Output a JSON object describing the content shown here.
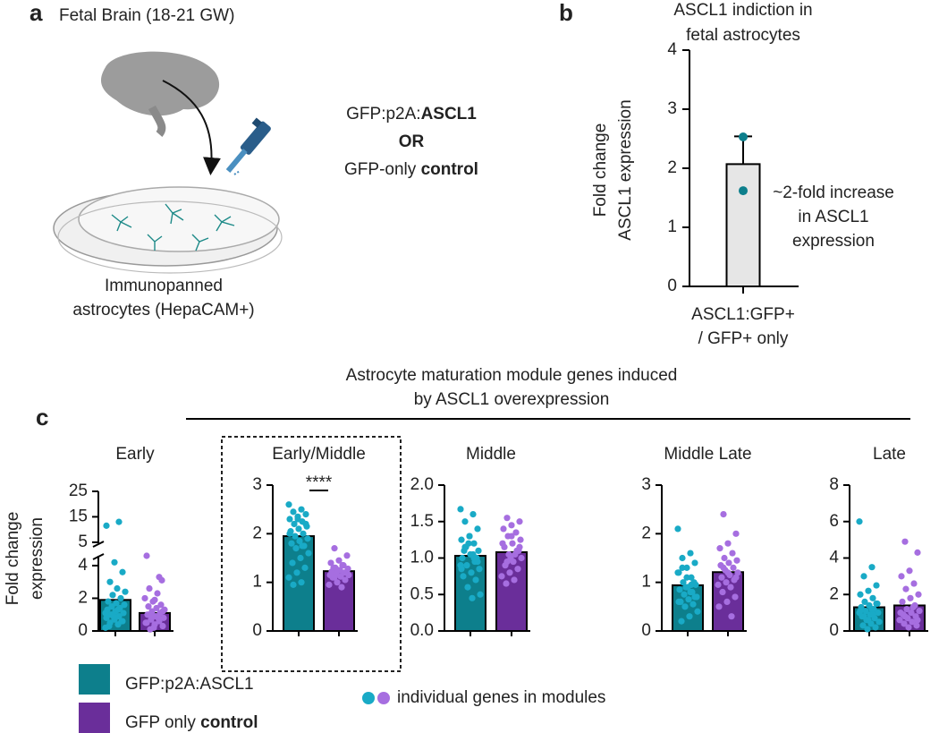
{
  "panel_labels": [
    "a",
    "b",
    "c"
  ],
  "panel_a": {
    "title": "Fetal Brain (18-21 GW)",
    "caption": [
      "Immunopanned",
      "astrocytes (HepaCAM+)"
    ],
    "conditions": [
      [
        {
          "text": "GFP:p2A:",
          "bold": false
        },
        {
          "text": "ASCL1",
          "bold": true
        }
      ],
      [
        {
          "text": "OR",
          "bold": true
        }
      ],
      [
        {
          "text": "GFP-only ",
          "bold": false
        },
        {
          "text": "control",
          "bold": true
        }
      ]
    ]
  },
  "panel_c": {
    "title": [
      "Astrocyte maturation module genes induced",
      "by ASCL1 overexpression"
    ],
    "y_label": [
      "Fold change",
      "expression"
    ]
  },
  "legend": {
    "entries": [
      {
        "text": [
          {
            "text": "GFP:p2A:ASCL1",
            "bold": false
          }
        ],
        "color": "#0d7f8c"
      },
      {
        "text": [
          {
            "text": "GFP only ",
            "bold": false
          },
          {
            "text": "control",
            "bold": true
          }
        ],
        "color": "#6a2e9a"
      }
    ],
    "points_label": "individual genes in modules",
    "point_colors": [
      "#19aac6",
      "#a66ee0"
    ]
  },
  "chart_data": [
    {
      "type": "bar",
      "title": [
        "ASCL1 indiction in",
        "fetal astrocytes"
      ],
      "y_label": [
        "Fold change",
        "ASCL1 expression"
      ],
      "category_label": [
        "ASCL1:GFP+",
        "/ GFP+ only"
      ],
      "values": [
        2.07
      ],
      "errors": [
        0.47
      ],
      "points": [
        [
          2.53,
          1.62
        ]
      ],
      "annotation": [
        "~2-fold increase",
        "in ASCL1",
        "expression"
      ],
      "color": "#e6e6e6",
      "point_color": "#0d7f8c",
      "ylim": [
        0,
        4
      ],
      "yticks": [
        0,
        1,
        2,
        3,
        4
      ]
    },
    {
      "type": "bar",
      "title": "Early",
      "values": [
        1.9,
        1.1
      ],
      "ylim": [
        0,
        25
      ],
      "ybreak": 4.6,
      "yticks": [
        0,
        2,
        4,
        5,
        15,
        25
      ],
      "colors": [
        "#0d7f8c",
        "#6a2e9a"
      ],
      "point_colors": [
        "#19aac6",
        "#a66ee0"
      ],
      "points": [
        [
          0.2,
          0.4,
          0.5,
          0.6,
          0.7,
          0.8,
          0.9,
          1.0,
          1.1,
          1.2,
          1.3,
          1.4,
          1.5,
          1.6,
          1.7,
          1.8,
          2.0,
          2.2,
          2.4,
          2.6,
          0.3,
          0.6,
          0.9,
          1.1,
          1.3,
          3.0,
          3.6,
          4.2,
          11.5,
          13
        ],
        [
          0.1,
          0.3,
          0.4,
          0.5,
          0.6,
          0.7,
          0.8,
          0.9,
          1.0,
          1.1,
          1.2,
          1.3,
          1.4,
          1.5,
          1.6,
          1.8,
          2.0,
          2.3,
          2.6,
          3.1,
          0.2,
          0.5,
          0.8,
          1.0,
          1.2,
          1.9,
          4.6,
          3.3
        ]
      ]
    },
    {
      "type": "bar",
      "title": "Early/Middle",
      "values": [
        1.95,
        1.23
      ],
      "ylim": [
        0,
        3
      ],
      "yticks": [
        0,
        1,
        2,
        3
      ],
      "annotation": "****",
      "highlight": true,
      "colors": [
        "#0d7f8c",
        "#6a2e9a"
      ],
      "point_colors": [
        "#19aac6",
        "#a66ee0"
      ],
      "points": [
        [
          2.6,
          2.5,
          2.45,
          2.4,
          2.35,
          2.3,
          2.25,
          2.2,
          2.15,
          2.1,
          2.05,
          2.0,
          1.95,
          1.9,
          1.85,
          1.8,
          1.75,
          1.7,
          1.6,
          1.5,
          1.4,
          1.3,
          1.2,
          1.1,
          1.0,
          0.95,
          2.2,
          2.3,
          2.0,
          1.75
        ],
        [
          1.7,
          1.55,
          1.45,
          1.4,
          1.35,
          1.3,
          1.28,
          1.25,
          1.22,
          1.2,
          1.18,
          1.15,
          1.12,
          1.1,
          1.05,
          1.0,
          0.95,
          0.9,
          1.3,
          1.2,
          1.25,
          1.15,
          1.35,
          1.1,
          1.2
        ]
      ]
    },
    {
      "type": "bar",
      "title": "Middle",
      "values": [
        1.03,
        1.08
      ],
      "ylim": [
        0,
        2
      ],
      "yticks": [
        {
          "value": 0,
          "label": "0.0"
        },
        {
          "value": 0.5,
          "label": "0.5"
        },
        {
          "value": 1,
          "label": "1.0"
        },
        {
          "value": 1.5,
          "label": "1.5"
        },
        {
          "value": 2,
          "label": "2.0"
        }
      ],
      "colors": [
        "#0d7f8c",
        "#6a2e9a"
      ],
      "point_colors": [
        "#19aac6",
        "#a66ee0"
      ],
      "points": [
        [
          1.67,
          1.6,
          1.5,
          1.4,
          1.3,
          1.25,
          1.2,
          1.15,
          1.1,
          1.05,
          1.0,
          0.95,
          0.9,
          0.85,
          0.8,
          0.75,
          0.7,
          0.6,
          0.5,
          0.45,
          1.1,
          1.0,
          1.2,
          0.9,
          1.05,
          1.15,
          0.95,
          1.3,
          0.85,
          1.0
        ],
        [
          1.55,
          1.5,
          1.45,
          1.4,
          1.35,
          1.3,
          1.25,
          1.2,
          1.15,
          1.1,
          1.05,
          1.0,
          0.95,
          0.9,
          0.85,
          0.8,
          0.75,
          0.7,
          0.65,
          1.1,
          1.0,
          1.2,
          1.05,
          0.95,
          1.15,
          1.3
        ]
      ]
    },
    {
      "type": "bar",
      "title": "Middle Late",
      "values": [
        0.94,
        1.21
      ],
      "ylim": [
        0,
        3
      ],
      "yticks": [
        0,
        1,
        2,
        3
      ],
      "colors": [
        "#0d7f8c",
        "#6a2e9a"
      ],
      "point_colors": [
        "#19aac6",
        "#a66ee0"
      ],
      "points": [
        [
          2.1,
          1.6,
          1.5,
          1.4,
          1.3,
          1.2,
          1.1,
          1.0,
          0.95,
          0.9,
          0.85,
          0.8,
          0.75,
          0.7,
          0.65,
          0.6,
          0.55,
          0.5,
          0.4,
          0.3,
          0.2,
          1.0,
          0.9,
          1.2,
          0.8,
          1.3,
          0.7,
          1.1,
          0.6,
          0.95
        ],
        [
          2.4,
          2.0,
          1.8,
          1.7,
          1.6,
          1.5,
          1.45,
          1.4,
          1.35,
          1.3,
          1.25,
          1.2,
          1.15,
          1.1,
          1.05,
          1.0,
          0.95,
          0.9,
          0.8,
          0.7,
          0.6,
          0.5,
          0.3,
          1.3,
          1.1,
          1.2
        ]
      ]
    },
    {
      "type": "bar",
      "title": "Late",
      "values": [
        1.3,
        1.4
      ],
      "ylim": [
        0,
        8
      ],
      "yticks": [
        0,
        2,
        4,
        6,
        8
      ],
      "colors": [
        "#0d7f8c",
        "#6a2e9a"
      ],
      "point_colors": [
        "#19aac6",
        "#a66ee0"
      ],
      "points": [
        [
          6.0,
          3.5,
          3.0,
          2.5,
          2.2,
          2.0,
          1.8,
          1.6,
          1.5,
          1.4,
          1.3,
          1.2,
          1.1,
          1.0,
          0.9,
          0.8,
          0.7,
          0.6,
          0.5,
          0.4,
          0.3,
          0.2,
          0.1,
          1.0,
          1.2,
          0.8,
          1.5,
          0.6,
          1.1,
          0.9
        ],
        [
          4.9,
          4.3,
          3.3,
          3.0,
          2.6,
          2.3,
          2.0,
          1.8,
          1.6,
          1.4,
          1.2,
          1.1,
          1.0,
          0.9,
          0.8,
          0.7,
          0.6,
          0.5,
          0.4,
          0.3,
          0.2,
          1.0,
          1.3,
          0.8,
          0.6
        ]
      ]
    }
  ]
}
